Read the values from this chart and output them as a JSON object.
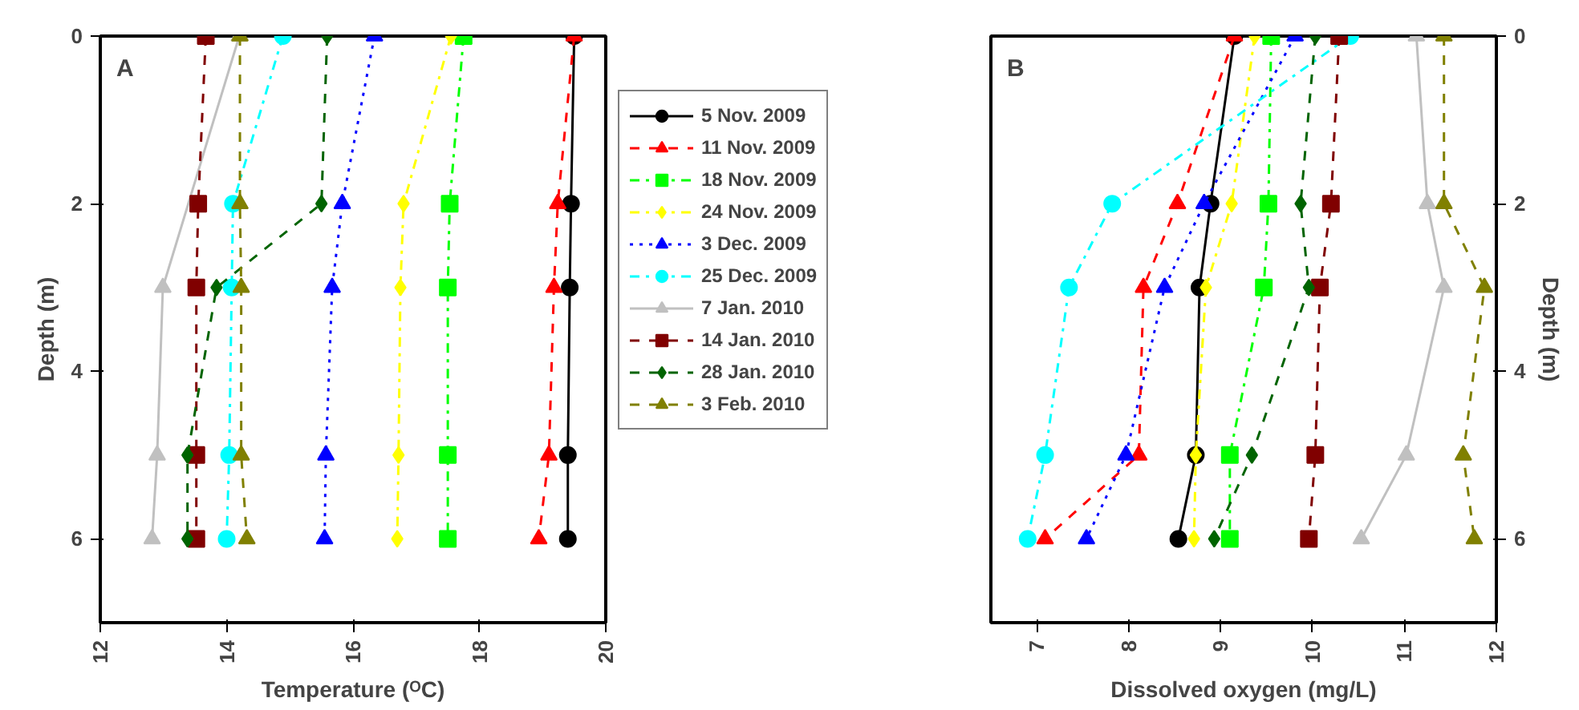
{
  "chart_data": [
    {
      "type": "line",
      "annotations": [
        "A"
      ],
      "xlabel": "Temperature (ᴼC)",
      "ylabel": "Depth (m)",
      "xlim": [
        12,
        20
      ],
      "xticks": [
        12,
        14,
        16,
        18,
        20
      ],
      "ylim": [
        7,
        0
      ],
      "yticks": [
        0,
        2,
        4,
        6
      ],
      "grid": false,
      "legend": "right",
      "series": [
        {
          "name": "5 Nov. 2009",
          "color": "#000000",
          "marker": "circle",
          "line_style": "solid",
          "x": [
            19.5,
            19.45,
            19.43,
            19.4,
            19.4
          ],
          "values": [
            0,
            2,
            3,
            5,
            6
          ]
        },
        {
          "name": "11 Nov. 2009",
          "color": "#ff0000",
          "marker": "triangle",
          "line_style": "dashed",
          "x": [
            19.5,
            19.24,
            19.18,
            19.1,
            18.94
          ],
          "values": [
            0,
            2,
            3,
            5,
            6
          ]
        },
        {
          "name": "18 Nov. 2009",
          "color": "#00ff00",
          "marker": "square",
          "line_style": "dashdot",
          "x": [
            17.75,
            17.53,
            17.5,
            17.5,
            17.5
          ],
          "values": [
            0,
            2,
            3,
            5,
            6
          ]
        },
        {
          "name": "24 Nov. 2009",
          "color": "#ffff00",
          "marker": "diamond",
          "line_style": "dashdot",
          "x": [
            17.55,
            16.8,
            16.75,
            16.72,
            16.7
          ],
          "values": [
            0,
            2,
            3,
            5,
            6
          ]
        },
        {
          "name": "3 Dec. 2009",
          "color": "#0000ff",
          "marker": "triangle",
          "line_style": "dotted",
          "x": [
            16.34,
            15.83,
            15.67,
            15.57,
            15.55
          ],
          "values": [
            0,
            2,
            3,
            5,
            6
          ]
        },
        {
          "name": "25 Dec. 2009",
          "color": "#00ffff",
          "marker": "circle",
          "line_style": "dashdot",
          "x": [
            14.89,
            14.1,
            14.08,
            14.04,
            14.0
          ],
          "values": [
            0,
            2,
            3,
            5,
            6
          ]
        },
        {
          "name": "7 Jan. 2010",
          "color": "#c0c0c0",
          "marker": "triangle",
          "line_style": "solid",
          "x": [
            14.2,
            12.99,
            12.9,
            12.82
          ],
          "values": [
            0,
            3,
            5,
            6
          ]
        },
        {
          "name": "14 Jan. 2010",
          "color": "#800000",
          "marker": "square",
          "line_style": "dashed",
          "x": [
            13.67,
            13.55,
            13.52,
            13.52,
            13.52
          ],
          "values": [
            0,
            2,
            3,
            5,
            6
          ]
        },
        {
          "name": "28 Jan. 2010",
          "color": "#006400",
          "marker": "diamond",
          "line_style": "dashed",
          "x": [
            15.59,
            15.5,
            13.84,
            13.38,
            13.38
          ],
          "values": [
            0,
            2,
            3,
            5,
            6
          ]
        },
        {
          "name": "3 Feb. 2010",
          "color": "#808000",
          "marker": "triangle",
          "line_style": "dashed",
          "x": [
            14.21,
            14.21,
            14.23,
            14.23,
            14.32
          ],
          "values": [
            0,
            2,
            3,
            5,
            6
          ]
        }
      ]
    },
    {
      "type": "line",
      "annotations": [
        "B"
      ],
      "xlabel": "Dissolved oxygen (mg/L)",
      "ylabel": "Depth (m)",
      "xlim": [
        6.5,
        12
      ],
      "xticks": [
        7,
        8,
        9,
        10,
        11,
        12
      ],
      "ylim": [
        7,
        0
      ],
      "yticks": [
        0,
        2,
        4,
        6
      ],
      "grid": false,
      "series": [
        {
          "color": "#000000",
          "marker": "circle",
          "line_style": "solid",
          "x": [
            9.15,
            8.89,
            8.77,
            8.73,
            8.54
          ],
          "values": [
            0,
            2,
            3,
            5,
            6
          ]
        },
        {
          "color": "#ff0000",
          "marker": "triangle",
          "line_style": "dashed",
          "x": [
            9.15,
            8.53,
            8.16,
            8.11,
            7.09
          ],
          "values": [
            0,
            2,
            3,
            5,
            6
          ]
        },
        {
          "color": "#00ff00",
          "marker": "square",
          "line_style": "dashdot",
          "x": [
            9.55,
            9.52,
            9.47,
            9.1,
            9.1
          ],
          "values": [
            0,
            2,
            3,
            5,
            6
          ]
        },
        {
          "color": "#ffff00",
          "marker": "diamond",
          "line_style": "dashdot",
          "x": [
            9.37,
            9.12,
            8.84,
            8.73,
            8.71
          ],
          "values": [
            0,
            2,
            3,
            5,
            6
          ]
        },
        {
          "color": "#0000ff",
          "marker": "triangle",
          "line_style": "dotted",
          "x": [
            9.81,
            8.82,
            8.39,
            7.97,
            7.54
          ],
          "values": [
            0,
            2,
            3,
            5,
            6
          ]
        },
        {
          "color": "#00ffff",
          "marker": "circle",
          "line_style": "dashdot",
          "x": [
            10.41,
            7.82,
            7.35,
            7.09,
            6.9
          ],
          "values": [
            0,
            2,
            3,
            5,
            6
          ]
        },
        {
          "color": "#c0c0c0",
          "marker": "triangle",
          "line_style": "solid",
          "x": [
            11.13,
            11.25,
            11.43,
            11.02,
            10.53
          ],
          "values": [
            0,
            2,
            3,
            5,
            6
          ]
        },
        {
          "color": "#800000",
          "marker": "square",
          "line_style": "dashed",
          "x": [
            10.29,
            10.2,
            10.08,
            10.03,
            9.96
          ],
          "values": [
            0,
            2,
            3,
            5,
            6
          ]
        },
        {
          "color": "#006400",
          "marker": "diamond",
          "line_style": "dashed",
          "x": [
            10.03,
            9.87,
            9.96,
            9.34,
            8.93
          ],
          "values": [
            0,
            2,
            3,
            5,
            6
          ]
        },
        {
          "color": "#808000",
          "marker": "triangle",
          "line_style": "dashed",
          "x": [
            11.43,
            11.43,
            11.87,
            11.64,
            11.76
          ],
          "values": [
            0,
            2,
            3,
            5,
            6
          ]
        }
      ]
    }
  ]
}
